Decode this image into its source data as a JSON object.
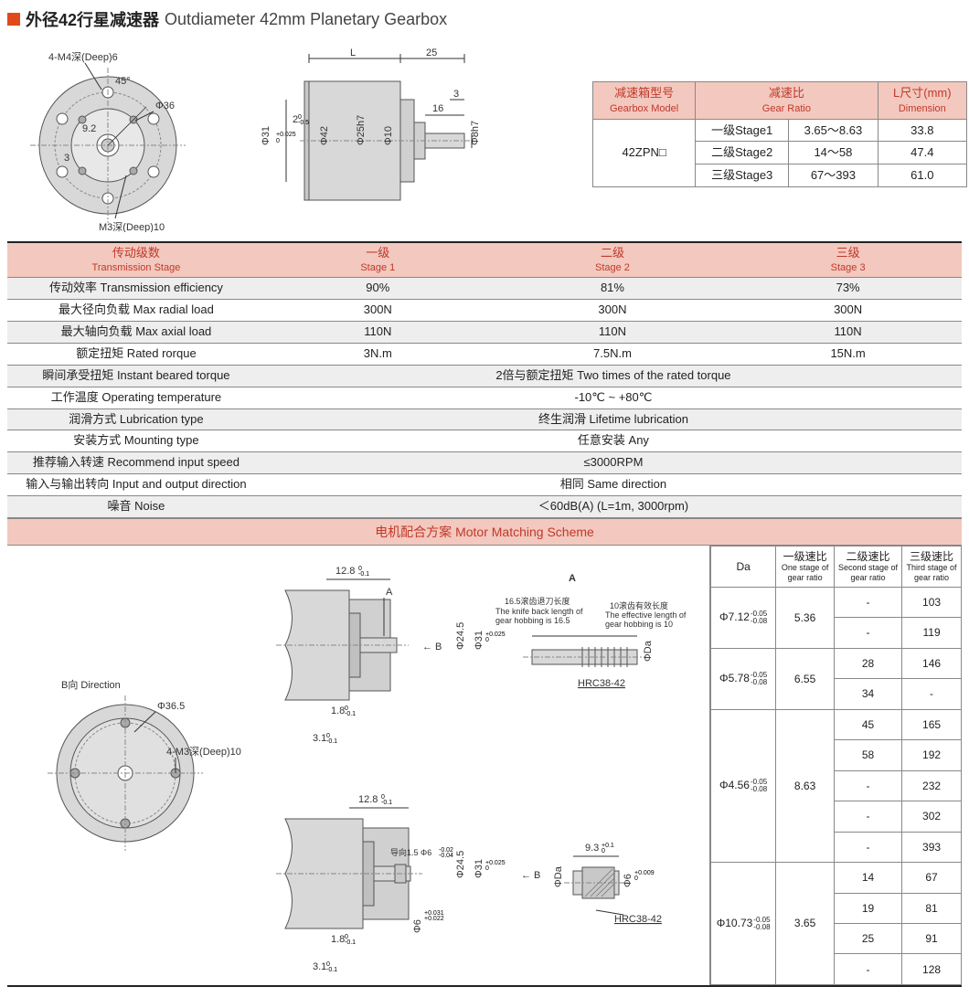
{
  "title": {
    "zh": "外径42行星减速器",
    "en": "Outdiameter 42mm Planetary Gearbox"
  },
  "top_table": {
    "headers": {
      "model_zh": "减速箱型号",
      "model_en": "Gearbox Model",
      "ratio_zh": "减速比",
      "ratio_en": "Gear Ratio",
      "dim_zh": "L尺寸(mm)",
      "dim_en": "Dimension"
    },
    "model": "42ZPN□",
    "rows": [
      {
        "stage": "一级Stage1",
        "ratio": "3.65～8.63",
        "dim": "33.8"
      },
      {
        "stage": "二级Stage2",
        "ratio": "14～58",
        "dim": "47.4"
      },
      {
        "stage": "三级Stage3",
        "ratio": "67～393",
        "dim": "61.0"
      }
    ]
  },
  "main_table": {
    "headers": {
      "stage_zh": "传动级数",
      "stage_en": "Transmission Stage",
      "s1_zh": "一级",
      "s1_en": "Stage 1",
      "s2_zh": "二级",
      "s2_en": "Stage 2",
      "s3_zh": "三级",
      "s3_en": "Stage 3"
    },
    "rows": [
      {
        "label": "传动效率 Transmission efficiency",
        "s1": "90%",
        "s2": "81%",
        "s3": "73%"
      },
      {
        "label": "最大径向负载 Max radial load",
        "s1": "300N",
        "s2": "300N",
        "s3": "300N"
      },
      {
        "label": "最大轴向负载 Max axial load",
        "s1": "110N",
        "s2": "110N",
        "s3": "110N"
      },
      {
        "label": "额定扭矩 Rated rorque",
        "s1": "3N.m",
        "s2": "7.5N.m",
        "s3": "15N.m"
      },
      {
        "label": "瞬间承受扭矩 Instant beared torque",
        "merged": "2倍与额定扭矩 Two times of the rated torque"
      },
      {
        "label": "工作温度 Operating temperature",
        "merged": "-10℃ ~ +80℃"
      },
      {
        "label": "润滑方式 Lubrication type",
        "merged": "终生润滑 Lifetime lubrication"
      },
      {
        "label": "安装方式 Mounting type",
        "merged": "任意安装 Any"
      },
      {
        "label": "推荐输入转速 Recommend input speed",
        "merged": "≤3000RPM"
      },
      {
        "label": "输入与输出转向 Input and output direction",
        "merged": "相同 Same direction"
      },
      {
        "label": "噪音 Noise",
        "merged": "＜60dB(A) (L=1m, 3000rpm)"
      }
    ]
  },
  "motor_header": "电机配合方案 Motor Matching Scheme",
  "ratio_table": {
    "headers": {
      "da": "Da",
      "s1_zh": "一级速比",
      "s1_en": "One stage of gear ratio",
      "s2_zh": "二级速比",
      "s2_en": "Second stage of gear ratio",
      "s3_zh": "三级速比",
      "s3_en": "Third stage of gear ratio"
    },
    "groups": [
      {
        "da": "Φ7.12",
        "tol": "-0.05 -0.08",
        "s1": "5.36",
        "rows": [
          {
            "s2": "-",
            "s3": "103"
          },
          {
            "s2": "-",
            "s3": "119"
          }
        ]
      },
      {
        "da": "Φ5.78",
        "tol": "-0.05 -0.08",
        "s1": "6.55",
        "rows": [
          {
            "s2": "28",
            "s3": "146"
          },
          {
            "s2": "34",
            "s3": "-"
          }
        ]
      },
      {
        "da": "Φ4.56",
        "tol": "-0.05 -0.08",
        "s1": "8.63",
        "rows": [
          {
            "s2": "45",
            "s3": "165"
          },
          {
            "s2": "58",
            "s3": "192"
          },
          {
            "s2": "-",
            "s3": "232"
          },
          {
            "s2": "-",
            "s3": "302"
          },
          {
            "s2": "-",
            "s3": "393"
          }
        ]
      },
      {
        "da": "Φ10.73",
        "tol": "-0.05 -0.08",
        "s1": "3.65",
        "rows": [
          {
            "s2": "14",
            "s3": "67"
          },
          {
            "s2": "19",
            "s3": "81"
          },
          {
            "s2": "25",
            "s3": "91"
          },
          {
            "s2": "-",
            "s3": "128"
          }
        ]
      }
    ]
  },
  "drawings": {
    "front": {
      "labels": [
        "4-M4深(Deep)6",
        "45°",
        "Φ36",
        "9.2",
        "3",
        "M3深(Deep)10"
      ]
    },
    "side": {
      "labels": [
        "L",
        "25",
        "2",
        "Φ31",
        "Φ42",
        "Φ25h7",
        "Φ10",
        "16",
        "3",
        "Φ8h7"
      ],
      "tol_2": "0 -0.5",
      "tol_31": "+0.025 0"
    },
    "bottom_circle": {
      "labels": [
        "B向 Direction",
        "Φ36.5",
        "4-M3深(Deep)10"
      ]
    },
    "shaft1": {
      "labels": [
        "12.8",
        "A",
        "1.8",
        "3.1",
        "Φ24.5",
        "Φ31"
      ],
      "detail": [
        "A",
        "16.5滚齿退刀长度",
        "The knife back length of gear hobbing is 16.5",
        "10滚齿有效长度",
        "The effective length of gear hobbing is 10",
        "ΦDa",
        "HRC38-42",
        "←B"
      ]
    },
    "shaft2": {
      "labels": [
        "12.8",
        "导向1.5 Φ6",
        "1.8",
        "3.1",
        "Φ24.5",
        "Φ31",
        "Φ6"
      ],
      "detail": [
        "9.3",
        "ΦDa",
        "Φ6",
        "HRC38-42",
        "←B"
      ]
    }
  },
  "colors": {
    "header_bg": "#f3c8be",
    "header_text": "#c0392b",
    "accent": "#e04a1a",
    "border": "#888888",
    "alt_row": "#eeeeee"
  }
}
